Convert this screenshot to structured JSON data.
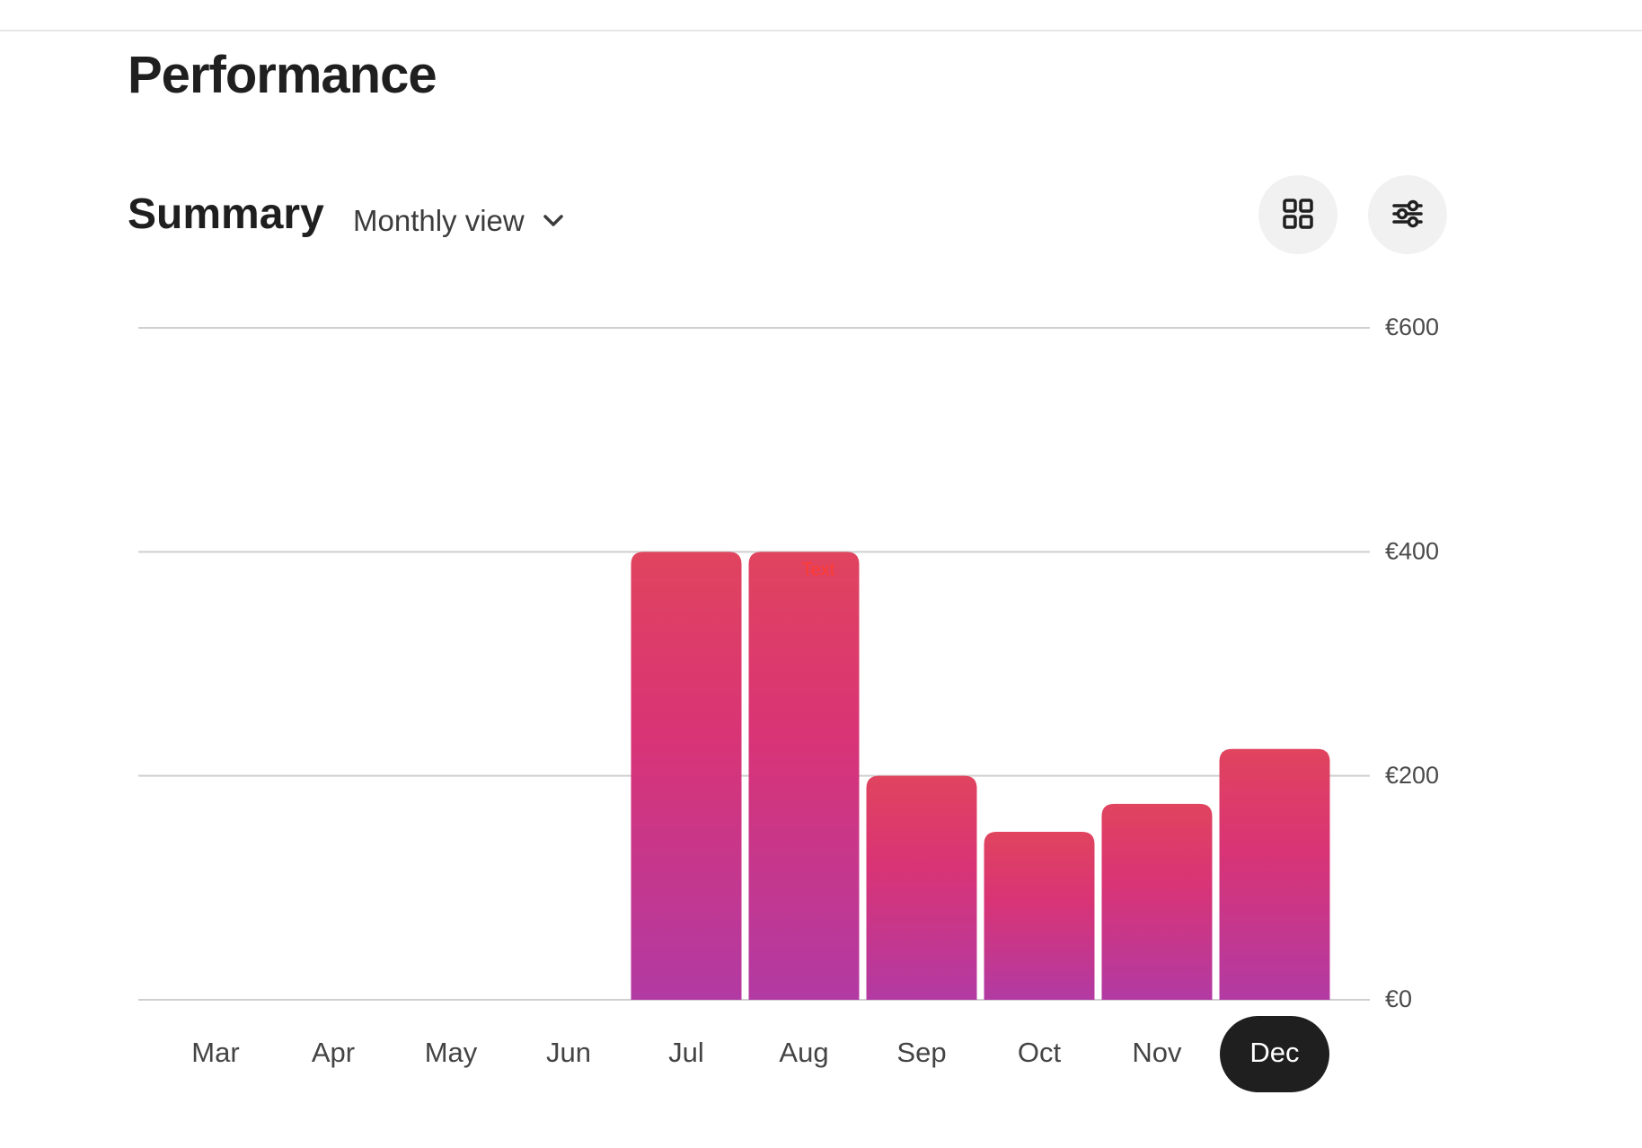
{
  "page": {
    "title": "Performance"
  },
  "summary": {
    "title": "Summary",
    "view_label": "Monthly view"
  },
  "toolbar": {
    "grid_icon": "grid-icon",
    "filter_icon": "sliders-icon"
  },
  "chart_data": {
    "type": "bar",
    "title": "",
    "xlabel": "",
    "ylabel": "",
    "categories": [
      "Mar",
      "Apr",
      "May",
      "Jun",
      "Jul",
      "Aug",
      "Sep",
      "Oct",
      "Nov",
      "Dec"
    ],
    "values": [
      0,
      0,
      0,
      0,
      400,
      400,
      200,
      150,
      175,
      224
    ],
    "ylim": [
      0,
      600
    ],
    "yticks": [
      0,
      200,
      400,
      600
    ],
    "ytick_labels": [
      "€0",
      "€200",
      "€400",
      "€600"
    ],
    "y_axis_side": "right",
    "grid": true,
    "selected_category": "Dec",
    "bar_note": {
      "category": "Aug",
      "text": "Text"
    },
    "colors": {
      "bar_top": "#e0445e",
      "bar_mid": "#d93475",
      "bar_bottom": "#b23aa3",
      "selected_pill": "#1f1f1f"
    }
  }
}
